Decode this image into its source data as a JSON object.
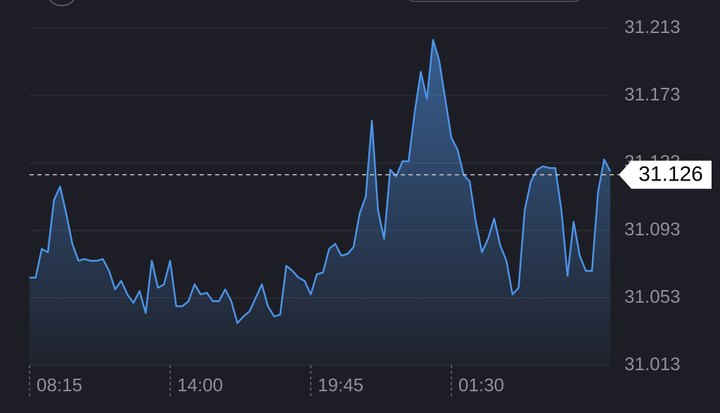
{
  "chart_data": {
    "type": "area",
    "categories": [
      "08:15",
      null,
      null,
      null,
      null,
      null,
      null,
      null,
      null,
      null,
      null,
      null,
      null,
      null,
      null,
      null,
      null,
      null,
      null,
      null,
      null,
      null,
      null,
      "14:00",
      null,
      null,
      null,
      null,
      null,
      null,
      null,
      null,
      null,
      null,
      null,
      null,
      null,
      null,
      null,
      null,
      null,
      null,
      null,
      null,
      null,
      null,
      "19:45",
      null,
      null,
      null,
      null,
      null,
      null,
      null,
      null,
      null,
      null,
      null,
      null,
      null,
      null,
      null,
      null,
      null,
      null,
      null,
      null,
      null,
      null,
      "01:30",
      null,
      null,
      null,
      null,
      null,
      null,
      null,
      null,
      null,
      null,
      null,
      null,
      null,
      null,
      null,
      null,
      null,
      null,
      null,
      null,
      null,
      null,
      null,
      null,
      null,
      null
    ],
    "values": [
      31.065,
      31.065,
      31.082,
      31.08,
      31.111,
      31.119,
      31.103,
      31.085,
      31.075,
      31.076,
      31.075,
      31.075,
      31.076,
      31.069,
      31.058,
      31.063,
      31.055,
      31.05,
      31.057,
      31.044,
      31.075,
      31.059,
      31.061,
      31.075,
      31.048,
      31.048,
      31.051,
      31.061,
      31.055,
      31.056,
      31.051,
      31.051,
      31.058,
      31.051,
      31.038,
      31.042,
      31.045,
      31.053,
      31.061,
      31.048,
      31.042,
      31.043,
      31.072,
      31.069,
      31.065,
      31.063,
      31.055,
      31.067,
      31.068,
      31.082,
      31.085,
      31.078,
      31.079,
      31.083,
      31.103,
      31.113,
      31.158,
      31.105,
      31.088,
      31.129,
      31.125,
      31.134,
      31.134,
      31.163,
      31.187,
      31.171,
      31.206,
      31.194,
      31.171,
      31.148,
      31.141,
      31.126,
      31.122,
      31.098,
      31.08,
      31.088,
      31.1,
      31.084,
      31.075,
      31.055,
      31.059,
      31.105,
      31.122,
      31.129,
      31.131,
      31.13,
      31.13,
      31.105,
      31.066,
      31.098,
      31.078,
      31.069,
      31.069,
      31.116,
      31.135,
      31.128
    ],
    "color": "#4d94e8",
    "current_price": 31.126,
    "ylim": [
      31.013,
      31.213
    ],
    "yticks": [
      31.013,
      31.053,
      31.093,
      31.133,
      31.173,
      31.213
    ],
    "grid": true
  }
}
